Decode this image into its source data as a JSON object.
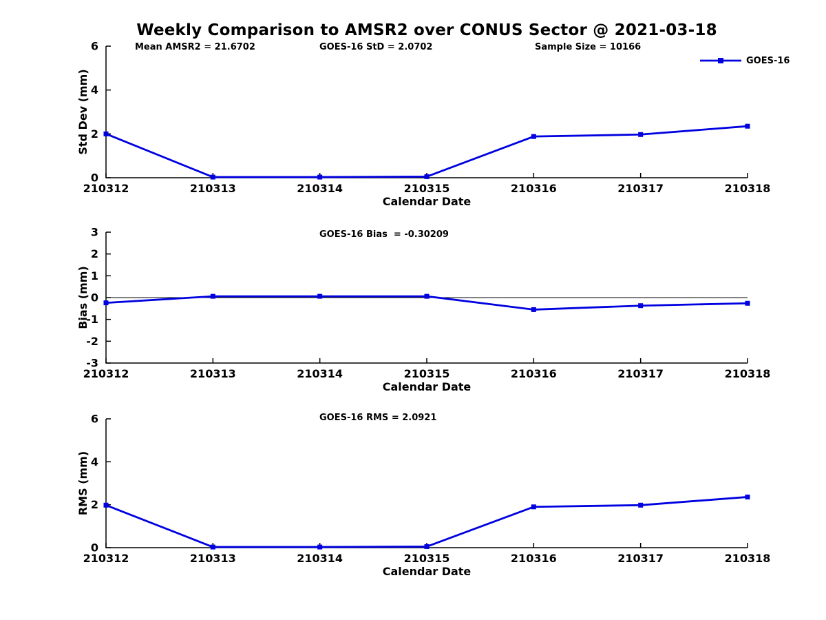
{
  "title": "Weekly Comparison to AMSR2 over CONUS Sector @ 2021-03-18",
  "header_annotations": {
    "mean_amsr2": "Mean AMSR2 = 21.6702",
    "goes16_std": "GOES-16 StD = 2.0702",
    "sample_size": "Sample Size = 10166"
  },
  "legend": {
    "label": "GOES-16",
    "color": "#0000e0",
    "marker": "square",
    "position": "top-right"
  },
  "colors": {
    "series_blue": "#0000e0",
    "axis_black": "#000000",
    "background": "#ffffff"
  },
  "chart_data": [
    {
      "type": "line",
      "title": "",
      "xlabel": "Calendar Date",
      "ylabel": "Std Dev (mm)",
      "ylim": [
        0,
        6
      ],
      "yticks": [
        0,
        2,
        4,
        6
      ],
      "grid": false,
      "zero_line": false,
      "categories": [
        "210312",
        "210313",
        "210314",
        "210315",
        "210316",
        "210317",
        "210318"
      ],
      "series": [
        {
          "name": "GOES-16",
          "color": "#0000e0",
          "marker": "square",
          "values": [
            2.0,
            0.03,
            0.03,
            0.05,
            1.88,
            1.97,
            2.35
          ]
        }
      ]
    },
    {
      "type": "line",
      "title": "GOES-16 Bias  = -0.30209",
      "xlabel": "Calendar Date",
      "ylabel": "Bias (mm)",
      "ylim": [
        -3,
        3
      ],
      "yticks": [
        -3,
        -2,
        -1,
        0,
        1,
        2,
        3
      ],
      "grid": false,
      "zero_line": true,
      "categories": [
        "210312",
        "210313",
        "210314",
        "210315",
        "210316",
        "210317",
        "210318"
      ],
      "series": [
        {
          "name": "GOES-16",
          "color": "#0000e0",
          "marker": "square",
          "values": [
            -0.24,
            0.06,
            0.06,
            0.06,
            -0.55,
            -0.37,
            -0.26
          ]
        }
      ]
    },
    {
      "type": "line",
      "title": "GOES-16 RMS = 2.0921",
      "xlabel": "Calendar Date",
      "ylabel": "RMS (mm)",
      "ylim": [
        0,
        6
      ],
      "yticks": [
        0,
        2,
        4,
        6
      ],
      "grid": false,
      "zero_line": false,
      "categories": [
        "210312",
        "210313",
        "210314",
        "210315",
        "210316",
        "210317",
        "210318"
      ],
      "series": [
        {
          "name": "GOES-16",
          "color": "#0000e0",
          "marker": "square",
          "values": [
            1.98,
            0.03,
            0.03,
            0.05,
            1.9,
            1.98,
            2.36
          ]
        }
      ]
    }
  ]
}
